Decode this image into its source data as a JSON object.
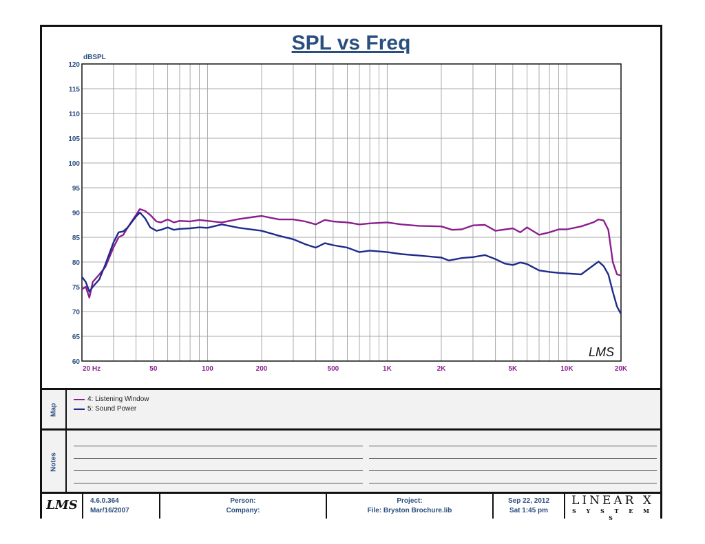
{
  "chart_data": {
    "type": "line",
    "title": "SPL vs Freq",
    "ylabel": "dBSPL",
    "xscale": "log",
    "xlim": [
      20,
      20000
    ],
    "ylim": [
      60,
      120
    ],
    "yticks": [
      "60",
      "65",
      "70",
      "75",
      "80",
      "85",
      "90",
      "95",
      "100",
      "105",
      "110",
      "115",
      "120"
    ],
    "xticks": [
      {
        "value": 20,
        "label": "20 Hz"
      },
      {
        "value": 50,
        "label": "50"
      },
      {
        "value": 100,
        "label": "100"
      },
      {
        "value": 200,
        "label": "200"
      },
      {
        "value": 500,
        "label": "500"
      },
      {
        "value": 1000,
        "label": "1K"
      },
      {
        "value": 2000,
        "label": "2K"
      },
      {
        "value": 5000,
        "label": "5K"
      },
      {
        "value": 10000,
        "label": "10K"
      },
      {
        "value": 20000,
        "label": "20K"
      }
    ],
    "grid": true,
    "watermark": "LMS",
    "series": [
      {
        "name": "4: Listening Window",
        "color": "#8b1e8e",
        "points": [
          [
            20,
            74.5
          ],
          [
            21,
            75
          ],
          [
            22,
            72.8
          ],
          [
            23,
            76
          ],
          [
            25,
            77.5
          ],
          [
            27,
            79
          ],
          [
            30,
            83
          ],
          [
            32,
            85
          ],
          [
            34,
            85.5
          ],
          [
            36,
            87
          ],
          [
            40,
            89.5
          ],
          [
            42,
            90.7
          ],
          [
            45,
            90.3
          ],
          [
            48,
            89.5
          ],
          [
            52,
            88.2
          ],
          [
            55,
            88
          ],
          [
            60,
            88.6
          ],
          [
            65,
            88
          ],
          [
            70,
            88.3
          ],
          [
            80,
            88.2
          ],
          [
            90,
            88.5
          ],
          [
            100,
            88.3
          ],
          [
            120,
            88
          ],
          [
            150,
            88.7
          ],
          [
            180,
            89.1
          ],
          [
            200,
            89.3
          ],
          [
            220,
            89
          ],
          [
            250,
            88.6
          ],
          [
            300,
            88.6
          ],
          [
            350,
            88.2
          ],
          [
            400,
            87.6
          ],
          [
            450,
            88.5
          ],
          [
            500,
            88.2
          ],
          [
            600,
            88
          ],
          [
            700,
            87.6
          ],
          [
            800,
            87.8
          ],
          [
            1000,
            88
          ],
          [
            1200,
            87.6
          ],
          [
            1500,
            87.3
          ],
          [
            2000,
            87.2
          ],
          [
            2300,
            86.5
          ],
          [
            2600,
            86.6
          ],
          [
            3000,
            87.4
          ],
          [
            3500,
            87.5
          ],
          [
            4000,
            86.3
          ],
          [
            5000,
            86.8
          ],
          [
            5500,
            86
          ],
          [
            6000,
            87
          ],
          [
            7000,
            85.5
          ],
          [
            8000,
            86
          ],
          [
            9000,
            86.6
          ],
          [
            10000,
            86.6
          ],
          [
            12000,
            87.2
          ],
          [
            14000,
            88
          ],
          [
            15000,
            88.6
          ],
          [
            16000,
            88.4
          ],
          [
            17000,
            86.5
          ],
          [
            18000,
            80
          ],
          [
            19000,
            77.5
          ],
          [
            20000,
            77.3
          ]
        ]
      },
      {
        "name": "5: Sound Power",
        "color": "#1f2a8a",
        "points": [
          [
            20,
            77
          ],
          [
            21,
            76
          ],
          [
            22,
            74
          ],
          [
            23,
            75
          ],
          [
            25,
            76.5
          ],
          [
            27,
            79.5
          ],
          [
            30,
            84
          ],
          [
            32,
            86
          ],
          [
            34,
            86.2
          ],
          [
            36,
            87
          ],
          [
            40,
            89.2
          ],
          [
            42,
            90
          ],
          [
            45,
            88.8
          ],
          [
            48,
            87
          ],
          [
            52,
            86.3
          ],
          [
            55,
            86.5
          ],
          [
            60,
            87
          ],
          [
            65,
            86.5
          ],
          [
            70,
            86.7
          ],
          [
            80,
            86.8
          ],
          [
            90,
            87
          ],
          [
            100,
            86.9
          ],
          [
            120,
            87.6
          ],
          [
            150,
            86.9
          ],
          [
            200,
            86.3
          ],
          [
            250,
            85.3
          ],
          [
            300,
            84.6
          ],
          [
            350,
            83.6
          ],
          [
            400,
            82.9
          ],
          [
            450,
            83.8
          ],
          [
            500,
            83.4
          ],
          [
            600,
            82.9
          ],
          [
            700,
            82
          ],
          [
            800,
            82.3
          ],
          [
            1000,
            82
          ],
          [
            1200,
            81.6
          ],
          [
            1500,
            81.3
          ],
          [
            2000,
            80.9
          ],
          [
            2200,
            80.3
          ],
          [
            2600,
            80.8
          ],
          [
            3000,
            81
          ],
          [
            3500,
            81.4
          ],
          [
            4000,
            80.6
          ],
          [
            4500,
            79.7
          ],
          [
            5000,
            79.4
          ],
          [
            5500,
            79.9
          ],
          [
            6000,
            79.6
          ],
          [
            7000,
            78.3
          ],
          [
            8000,
            78
          ],
          [
            9000,
            77.8
          ],
          [
            10000,
            77.7
          ],
          [
            12000,
            77.5
          ],
          [
            14000,
            79.3
          ],
          [
            15000,
            80.1
          ],
          [
            16000,
            79.2
          ],
          [
            17000,
            77.5
          ],
          [
            18000,
            74
          ],
          [
            19000,
            71
          ],
          [
            20000,
            69.5
          ]
        ]
      }
    ]
  },
  "map": {
    "label": "Map",
    "legend": [
      "4: Listening Window",
      "5: Sound Power"
    ]
  },
  "notes": {
    "label": "Notes"
  },
  "footer": {
    "logo": "LMS",
    "version": "4.6.0.364",
    "version_date": "Mar/16/2007",
    "person_label": "Person:",
    "company_label": "Company:",
    "project_label": "Project:",
    "file": "File: Bryston Brochure.lib",
    "date": "Sep 22, 2012",
    "time": "Sat  1:45 pm",
    "brand_top": "LINEAR X",
    "brand_bottom": "S Y S T E M S"
  }
}
